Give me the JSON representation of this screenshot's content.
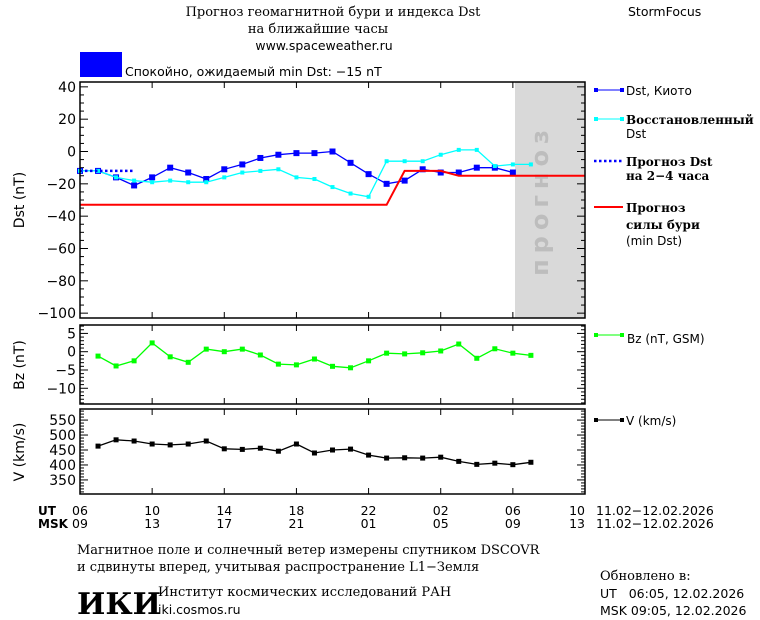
{
  "header": {
    "title_line1": "Прогноз геомагнитной бури и индекса Dst",
    "title_line2": "на ближайшие часы",
    "url": "www.spaceweather.ru",
    "brand": "StormFocus",
    "status_text": "Спокойно, ожидаемый min Dst: −15 nT",
    "status_color": "#0000ff"
  },
  "forecast_zone_label": "прогноз",
  "time_axis": {
    "ut_label": "UT",
    "msk_label": "MSK",
    "ut_ticks": [
      "06",
      "10",
      "14",
      "18",
      "22",
      "02",
      "06",
      "10"
    ],
    "msk_ticks": [
      "09",
      "13",
      "17",
      "21",
      "01",
      "05",
      "09",
      "13"
    ],
    "ut_dates": "11.02−12.02.2026",
    "msk_dates": "11.02−12.02.2026"
  },
  "legend": {
    "dst_kyoto": "Dst, Киото",
    "dst_restored_1": "Восстановленный",
    "dst_restored_2": "Dst",
    "dst_forecast_1": "Прогноз Dst",
    "dst_forecast_2": "на 2−4 часа",
    "storm_forecast_1": "Прогноз",
    "storm_forecast_2": "силы бури",
    "storm_forecast_3": "(min Dst)",
    "bz": "Bz (nT, GSM)",
    "v": "V (km/s)"
  },
  "footer": {
    "note_line1": "Магнитное поле и солнечный ветер измерены спутником DSCOVR",
    "note_line2": "и сдвинуты вперед, учитывая распространение L1−Земля",
    "logo": "ИКИ",
    "institute": "Институт космических исследований РАН",
    "site": "iki.cosmos.ru",
    "updated_label": "Обновлено в:",
    "updated_ut": "UT   06:05, 12.02.2026",
    "updated_msk": "MSK 09:05, 12.02.2026"
  },
  "chart_data": [
    {
      "type": "line",
      "ylabel": "Dst (nT)",
      "ylim": [
        -103,
        43
      ],
      "yticks": [
        "40",
        "20",
        "0",
        "−20",
        "−40",
        "−60",
        "−80",
        "−100"
      ],
      "ytick_values": [
        40,
        20,
        0,
        -20,
        -40,
        -60,
        -80,
        -100
      ],
      "xlim_ut": [
        "06",
        "10"
      ],
      "forecast_zone_ut": [
        "06",
        "10"
      ],
      "series": [
        {
          "name": "Dst, Киото",
          "color": "#0000ff",
          "style": "line-marker",
          "x_ut": [
            "06",
            "07",
            "08",
            "09",
            "10",
            "11",
            "12",
            "13",
            "14",
            "15",
            "16",
            "17",
            "18",
            "19",
            "20",
            "21",
            "22",
            "23",
            "00",
            "01",
            "02",
            "03",
            "04",
            "05",
            "06"
          ],
          "values": [
            -12,
            -12,
            -16,
            -21,
            -16,
            -10,
            -13,
            -17,
            -11,
            -8,
            -4,
            -2,
            -1,
            -1,
            0,
            -7,
            -14,
            -20,
            -18,
            -11,
            -13,
            -13,
            -10,
            -10,
            -13
          ]
        },
        {
          "name": "Восстановленный Dst",
          "color": "#00ffff",
          "style": "line-marker",
          "x_ut": [
            "06",
            "07",
            "08",
            "09",
            "10",
            "11",
            "12",
            "13",
            "14",
            "15",
            "16",
            "17",
            "18",
            "19",
            "20",
            "21",
            "22",
            "23",
            "00",
            "01",
            "02",
            "03",
            "04",
            "05",
            "06",
            "07"
          ],
          "values": [
            -12,
            -12,
            -16,
            -18,
            -19,
            -18,
            -19,
            -19,
            -16,
            -13,
            -12,
            -11,
            -16,
            -17,
            -22,
            -26,
            -28,
            -6,
            -6,
            -6,
            -2,
            1,
            1,
            -9,
            -8,
            -8
          ]
        },
        {
          "name": "Прогноз Dst на 2−4 часа",
          "color": "#0000ff",
          "style": "dotted",
          "x_ut": [
            "06",
            "07",
            "08",
            "09"
          ],
          "values": [
            -12,
            -12,
            -12,
            -12
          ]
        },
        {
          "name": "Прогноз силы бури (min Dst)",
          "color": "#ff0000",
          "style": "line",
          "x_ut": [
            "06",
            "23",
            "00",
            "02",
            "03",
            "10"
          ],
          "values": [
            -33,
            -33,
            -12,
            -12,
            -15,
            -15
          ]
        }
      ]
    },
    {
      "type": "line",
      "ylabel": "Bz (nT)",
      "ylim": [
        -14.3,
        7.3
      ],
      "yticks": [
        "5",
        "0",
        "−5",
        "−10"
      ],
      "ytick_values": [
        5,
        0,
        -5,
        -10
      ],
      "series": [
        {
          "name": "Bz (nT, GSM)",
          "color": "#00ff00",
          "style": "line-marker",
          "x_ut": [
            "07",
            "08",
            "09",
            "10",
            "11",
            "12",
            "13",
            "14",
            "15",
            "16",
            "17",
            "18",
            "19",
            "20",
            "21",
            "22",
            "23",
            "00",
            "01",
            "02",
            "03",
            "04",
            "05",
            "06",
            "07"
          ],
          "values": [
            -1.2,
            -3.9,
            -2.5,
            2.4,
            -1.4,
            -2.9,
            0.7,
            0,
            0.7,
            -0.9,
            -3.4,
            -3.6,
            -2.0,
            -4.0,
            -4.4,
            -2.5,
            -0.4,
            -0.6,
            -0.3,
            0.2,
            2.1,
            -1.8,
            0.8,
            -0.4,
            -1.0
          ]
        }
      ]
    },
    {
      "type": "line",
      "ylabel": "V (km/s)",
      "ylim": [
        303,
        587
      ],
      "yticks": [
        "550",
        "500",
        "450",
        "400",
        "350"
      ],
      "ytick_values": [
        550,
        500,
        450,
        400,
        350
      ],
      "series": [
        {
          "name": "V (km/s)",
          "color": "#000000",
          "style": "line-marker",
          "x_ut": [
            "07",
            "08",
            "09",
            "10",
            "11",
            "12",
            "13",
            "14",
            "15",
            "16",
            "17",
            "18",
            "19",
            "20",
            "21",
            "22",
            "23",
            "00",
            "01",
            "02",
            "03",
            "04",
            "05",
            "06",
            "07"
          ],
          "values": [
            463,
            484,
            480,
            470,
            467,
            470,
            480,
            454,
            452,
            456,
            446,
            470,
            440,
            450,
            453,
            433,
            423,
            424,
            423,
            426,
            412,
            402,
            406,
            401,
            409
          ]
        }
      ]
    }
  ]
}
